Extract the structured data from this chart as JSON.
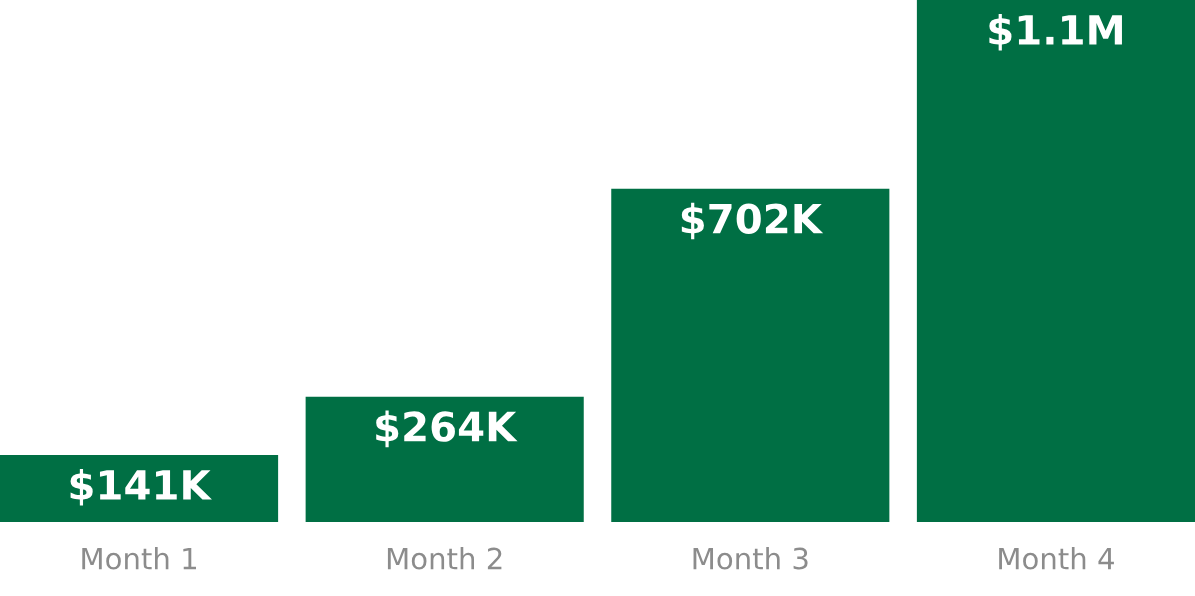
{
  "chart_data": {
    "type": "bar",
    "categories": [
      "Month 1",
      "Month 2",
      "Month 3",
      "Month 4"
    ],
    "values": [
      141000,
      264000,
      702000,
      1100000
    ],
    "value_labels": [
      "$141K",
      "$264K",
      "$702K",
      "$1.1M"
    ],
    "color": "#006f44",
    "grid": false,
    "legend": false
  }
}
